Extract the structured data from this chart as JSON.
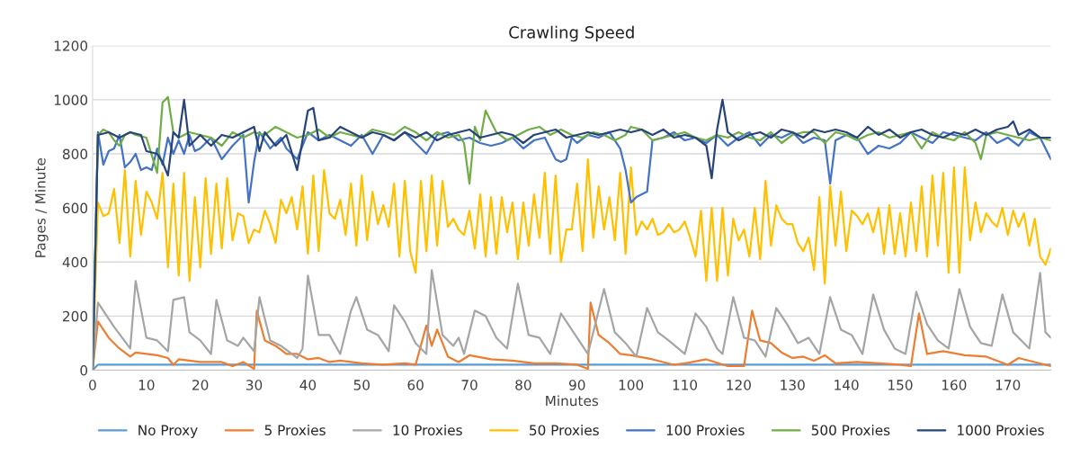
{
  "chart_data": {
    "type": "line",
    "title": "Crawling Speed",
    "xlabel": "Minutes",
    "ylabel": "Pages / Minute",
    "xlim": [
      0,
      178
    ],
    "ylim": [
      0,
      1200
    ],
    "xticks": [
      0,
      10,
      20,
      30,
      40,
      50,
      60,
      70,
      80,
      90,
      100,
      110,
      120,
      130,
      140,
      150,
      160,
      170
    ],
    "yticks": [
      0,
      200,
      400,
      600,
      800,
      1000,
      1200
    ],
    "grid": "y",
    "legend": "bottom",
    "marker": "none",
    "line_style": "solid",
    "series": [
      {
        "name": "No Proxy",
        "color": "#5b9bd5",
        "x": [
          0,
          1,
          178
        ],
        "values": [
          0,
          20,
          20
        ]
      },
      {
        "name": "5 Proxies",
        "color": "#ed7d31",
        "x": [
          0,
          1,
          3,
          5,
          7,
          8,
          12,
          14,
          15,
          16,
          20,
          24,
          26,
          28,
          30,
          30.5,
          32,
          34,
          36,
          38,
          40,
          42,
          44,
          46,
          50,
          54,
          58,
          60,
          62,
          63,
          64,
          66,
          68,
          70,
          74,
          78,
          82,
          86,
          90,
          92,
          92.5,
          94,
          96,
          98,
          100,
          104,
          108,
          110,
          114,
          118,
          121,
          122.5,
          124,
          126,
          128,
          130,
          132,
          134,
          136,
          138,
          142,
          146,
          150,
          152,
          153.5,
          155,
          158,
          162,
          166,
          170,
          172,
          176,
          178
        ],
        "values": [
          0,
          180,
          120,
          80,
          50,
          65,
          55,
          45,
          20,
          40,
          30,
          30,
          15,
          30,
          5,
          220,
          110,
          90,
          60,
          60,
          40,
          45,
          30,
          35,
          25,
          20,
          25,
          20,
          165,
          90,
          150,
          50,
          30,
          55,
          40,
          35,
          25,
          25,
          20,
          5,
          250,
          130,
          100,
          60,
          55,
          40,
          20,
          25,
          40,
          15,
          15,
          220,
          110,
          100,
          65,
          45,
          50,
          35,
          55,
          25,
          30,
          25,
          20,
          15,
          210,
          60,
          70,
          55,
          50,
          20,
          45,
          25,
          15
        ]
      },
      {
        "name": "10 Proxies",
        "color": "#a5a5a5",
        "x": [
          0,
          1,
          4,
          7,
          8,
          10,
          12,
          14,
          15,
          17,
          18,
          20,
          22,
          23,
          25,
          27,
          28,
          30,
          31,
          33,
          35,
          37,
          38,
          39,
          40,
          42,
          44,
          46,
          48,
          49,
          51,
          53,
          55,
          56,
          58,
          60,
          62,
          63,
          65,
          67,
          68,
          69,
          71,
          73,
          75,
          77,
          79,
          81,
          83,
          85,
          87,
          89,
          91,
          92,
          95,
          97,
          99,
          101,
          103,
          105,
          107,
          110,
          112,
          114,
          116,
          117,
          119,
          121,
          123,
          125,
          127,
          129,
          131,
          133,
          135,
          137,
          139,
          141,
          143,
          145,
          147,
          149,
          151,
          153,
          155,
          157,
          159,
          161,
          163,
          165,
          167,
          169,
          171,
          173,
          174,
          176,
          177,
          178
        ],
        "values": [
          0,
          250,
          160,
          80,
          330,
          120,
          110,
          70,
          260,
          270,
          140,
          110,
          60,
          260,
          110,
          90,
          120,
          70,
          270,
          110,
          90,
          60,
          45,
          80,
          350,
          130,
          130,
          60,
          220,
          270,
          150,
          130,
          70,
          240,
          180,
          100,
          60,
          370,
          130,
          90,
          120,
          60,
          220,
          200,
          120,
          80,
          320,
          130,
          120,
          60,
          210,
          150,
          90,
          60,
          300,
          140,
          100,
          50,
          230,
          140,
          110,
          60,
          210,
          160,
          80,
          60,
          270,
          120,
          110,
          50,
          230,
          170,
          100,
          120,
          60,
          270,
          150,
          130,
          60,
          280,
          150,
          80,
          60,
          290,
          170,
          110,
          80,
          300,
          160,
          100,
          90,
          280,
          140,
          100,
          80,
          360,
          140,
          120
        ]
      },
      {
        "name": "50 Proxies",
        "color": "#ffc000",
        "x": [
          0,
          1,
          2,
          3,
          4,
          5,
          6,
          7,
          8,
          9,
          10,
          11,
          12,
          13,
          14,
          15,
          16,
          17,
          18,
          19,
          20,
          21,
          22,
          23,
          24,
          25,
          26,
          27,
          28,
          29,
          30,
          31,
          32,
          33,
          34,
          35,
          36,
          37,
          38,
          39,
          40,
          41,
          42,
          43,
          44,
          45,
          46,
          47,
          48,
          49,
          50,
          51,
          52,
          53,
          54,
          55,
          56,
          57,
          58,
          59,
          60,
          61,
          62,
          63,
          64,
          65,
          66,
          67,
          68,
          69,
          70,
          71,
          72,
          73,
          74,
          75,
          76,
          77,
          78,
          79,
          80,
          81,
          82,
          83,
          84,
          85,
          86,
          87,
          88,
          89,
          90,
          91,
          92,
          93,
          94,
          95,
          96,
          97,
          98,
          99,
          100,
          101,
          102,
          103,
          104,
          105,
          106,
          107,
          108,
          109,
          110,
          111,
          112,
          113,
          114,
          115,
          116,
          117,
          118,
          119,
          120,
          121,
          122,
          123,
          124,
          125,
          126,
          127,
          128,
          129,
          130,
          131,
          132,
          133,
          134,
          135,
          136,
          137,
          138,
          139,
          140,
          141,
          142,
          143,
          144,
          145,
          146,
          147,
          148,
          149,
          150,
          151,
          152,
          153,
          154,
          155,
          156,
          157,
          158,
          159,
          160,
          161,
          162,
          163,
          164,
          165,
          166,
          167,
          168,
          169,
          170,
          171,
          172,
          173,
          174,
          175,
          176,
          177,
          178
        ],
        "values": [
          0,
          620,
          570,
          580,
          670,
          470,
          740,
          420,
          700,
          500,
          660,
          620,
          560,
          730,
          380,
          690,
          350,
          730,
          330,
          640,
          380,
          710,
          430,
          690,
          450,
          710,
          480,
          580,
          570,
          470,
          520,
          510,
          590,
          540,
          470,
          630,
          580,
          640,
          520,
          680,
          430,
          720,
          440,
          740,
          580,
          560,
          630,
          500,
          690,
          460,
          720,
          480,
          660,
          540,
          610,
          530,
          690,
          420,
          700,
          440,
          360,
          700,
          440,
          720,
          460,
          700,
          530,
          560,
          520,
          500,
          590,
          450,
          650,
          420,
          640,
          430,
          640,
          510,
          620,
          410,
          620,
          460,
          650,
          490,
          730,
          430,
          720,
          400,
          520,
          520,
          690,
          440,
          780,
          490,
          680,
          520,
          640,
          480,
          730,
          430,
          750,
          500,
          550,
          520,
          560,
          500,
          510,
          540,
          510,
          520,
          550,
          490,
          420,
          590,
          330,
          600,
          330,
          600,
          350,
          560,
          480,
          520,
          420,
          600,
          410,
          700,
          460,
          610,
          560,
          540,
          540,
          470,
          440,
          490,
          370,
          640,
          320,
          680,
          460,
          660,
          440,
          590,
          570,
          540,
          580,
          510,
          600,
          430,
          610,
          430,
          580,
          420,
          620,
          440,
          680,
          420,
          720,
          460,
          730,
          360,
          750,
          360,
          750,
          480,
          620,
          510,
          580,
          550,
          530,
          600,
          500,
          590,
          530,
          580,
          460,
          560,
          420,
          390,
          450
        ]
      },
      {
        "name": "100 Proxies",
        "color": "#4472c4",
        "x": [
          0,
          1,
          2,
          3,
          4,
          5,
          6,
          7,
          8,
          9,
          10,
          11,
          12,
          13,
          14,
          15,
          16,
          17,
          18,
          19,
          20,
          22,
          24,
          26,
          28,
          29,
          30,
          31,
          33,
          35,
          36,
          38,
          40,
          42,
          44,
          46,
          48,
          50,
          52,
          54,
          56,
          58,
          60,
          62,
          64,
          66,
          68,
          70,
          72,
          74,
          76,
          78,
          80,
          82,
          84,
          86,
          87,
          88,
          89,
          90,
          92,
          94,
          96,
          98,
          99,
          100,
          101,
          102,
          103,
          104,
          106,
          108,
          110,
          112,
          114,
          116,
          118,
          120,
          122,
          124,
          126,
          128,
          130,
          132,
          134,
          136,
          137,
          138,
          140,
          142,
          144,
          146,
          148,
          150,
          152,
          154,
          156,
          158,
          160,
          162,
          164,
          166,
          168,
          170,
          172,
          174,
          176,
          178
        ],
        "values": [
          0,
          880,
          760,
          810,
          820,
          870,
          750,
          770,
          800,
          740,
          750,
          740,
          820,
          760,
          860,
          800,
          850,
          800,
          870,
          810,
          820,
          860,
          780,
          830,
          870,
          620,
          770,
          880,
          820,
          860,
          820,
          780,
          880,
          850,
          870,
          850,
          830,
          870,
          800,
          870,
          850,
          880,
          840,
          800,
          870,
          880,
          850,
          860,
          840,
          830,
          840,
          860,
          820,
          850,
          860,
          780,
          770,
          780,
          860,
          840,
          870,
          860,
          880,
          820,
          740,
          620,
          640,
          650,
          660,
          850,
          860,
          880,
          850,
          860,
          840,
          870,
          830,
          860,
          880,
          830,
          870,
          860,
          880,
          840,
          860,
          850,
          690,
          850,
          870,
          860,
          800,
          830,
          820,
          840,
          880,
          860,
          840,
          880,
          870,
          860,
          850,
          880,
          840,
          860,
          830,
          880,
          860,
          780
        ]
      },
      {
        "name": "500 Proxies",
        "color": "#70ad47",
        "x": [
          0,
          1,
          2,
          3,
          4,
          5,
          6,
          7,
          8,
          10,
          12,
          13,
          14,
          15,
          16,
          18,
          20,
          22,
          24,
          26,
          28,
          30,
          32,
          34,
          36,
          38,
          40,
          42,
          44,
          46,
          48,
          50,
          52,
          54,
          56,
          58,
          60,
          62,
          64,
          66,
          68,
          69,
          70,
          71,
          72,
          73,
          75,
          77,
          79,
          81,
          83,
          85,
          87,
          89,
          91,
          93,
          95,
          97,
          99,
          100,
          102,
          104,
          106,
          108,
          110,
          112,
          114,
          116,
          118,
          120,
          122,
          124,
          126,
          128,
          130,
          132,
          134,
          136,
          138,
          140,
          142,
          144,
          146,
          148,
          150,
          152,
          154,
          156,
          158,
          160,
          162,
          164,
          165,
          166,
          168,
          170,
          172,
          174,
          176,
          178
        ],
        "values": [
          0,
          870,
          890,
          880,
          850,
          830,
          870,
          880,
          870,
          860,
          730,
          990,
          1010,
          880,
          860,
          880,
          870,
          860,
          830,
          880,
          860,
          880,
          870,
          900,
          880,
          860,
          870,
          890,
          860,
          880,
          870,
          860,
          890,
          880,
          870,
          900,
          880,
          850,
          880,
          860,
          870,
          840,
          690,
          900,
          850,
          960,
          880,
          850,
          870,
          890,
          900,
          870,
          890,
          870,
          860,
          880,
          870,
          850,
          870,
          900,
          890,
          850,
          860,
          870,
          880,
          860,
          850,
          870,
          860,
          880,
          860,
          850,
          880,
          840,
          870,
          880,
          880,
          840,
          880,
          870,
          850,
          870,
          880,
          860,
          870,
          880,
          820,
          880,
          860,
          850,
          880,
          840,
          780,
          870,
          880,
          870,
          860,
          850,
          860,
          850
        ]
      },
      {
        "name": "1000 Proxies",
        "color": "#264478",
        "x": [
          0,
          1,
          3,
          5,
          7,
          9,
          10,
          12,
          13,
          14,
          15,
          16,
          17,
          18,
          20,
          22,
          24,
          26,
          28,
          30,
          31,
          32,
          34,
          36,
          38,
          40,
          41,
          42,
          44,
          46,
          48,
          50,
          52,
          54,
          56,
          58,
          60,
          62,
          64,
          66,
          68,
          70,
          72,
          74,
          76,
          78,
          80,
          82,
          84,
          86,
          88,
          90,
          92,
          94,
          96,
          98,
          100,
          102,
          104,
          106,
          108,
          110,
          112,
          114,
          115,
          116,
          117,
          118,
          120,
          122,
          124,
          126,
          128,
          130,
          132,
          134,
          136,
          138,
          140,
          142,
          144,
          146,
          148,
          150,
          152,
          154,
          156,
          158,
          160,
          162,
          164,
          166,
          168,
          170,
          171,
          172,
          174,
          176,
          178
        ],
        "values": [
          0,
          870,
          880,
          860,
          880,
          870,
          810,
          800,
          770,
          720,
          880,
          860,
          1000,
          830,
          870,
          830,
          870,
          860,
          880,
          900,
          810,
          880,
          830,
          870,
          740,
          960,
          970,
          850,
          860,
          900,
          880,
          860,
          880,
          870,
          850,
          880,
          860,
          880,
          850,
          870,
          880,
          890,
          860,
          870,
          880,
          870,
          840,
          870,
          880,
          890,
          860,
          870,
          880,
          870,
          880,
          890,
          880,
          890,
          870,
          890,
          860,
          870,
          860,
          830,
          710,
          890,
          1000,
          880,
          850,
          870,
          880,
          860,
          890,
          880,
          860,
          890,
          880,
          890,
          880,
          860,
          900,
          870,
          890,
          860,
          880,
          890,
          870,
          860,
          880,
          870,
          890,
          870,
          890,
          900,
          920,
          870,
          890,
          860,
          860
        ]
      }
    ]
  }
}
